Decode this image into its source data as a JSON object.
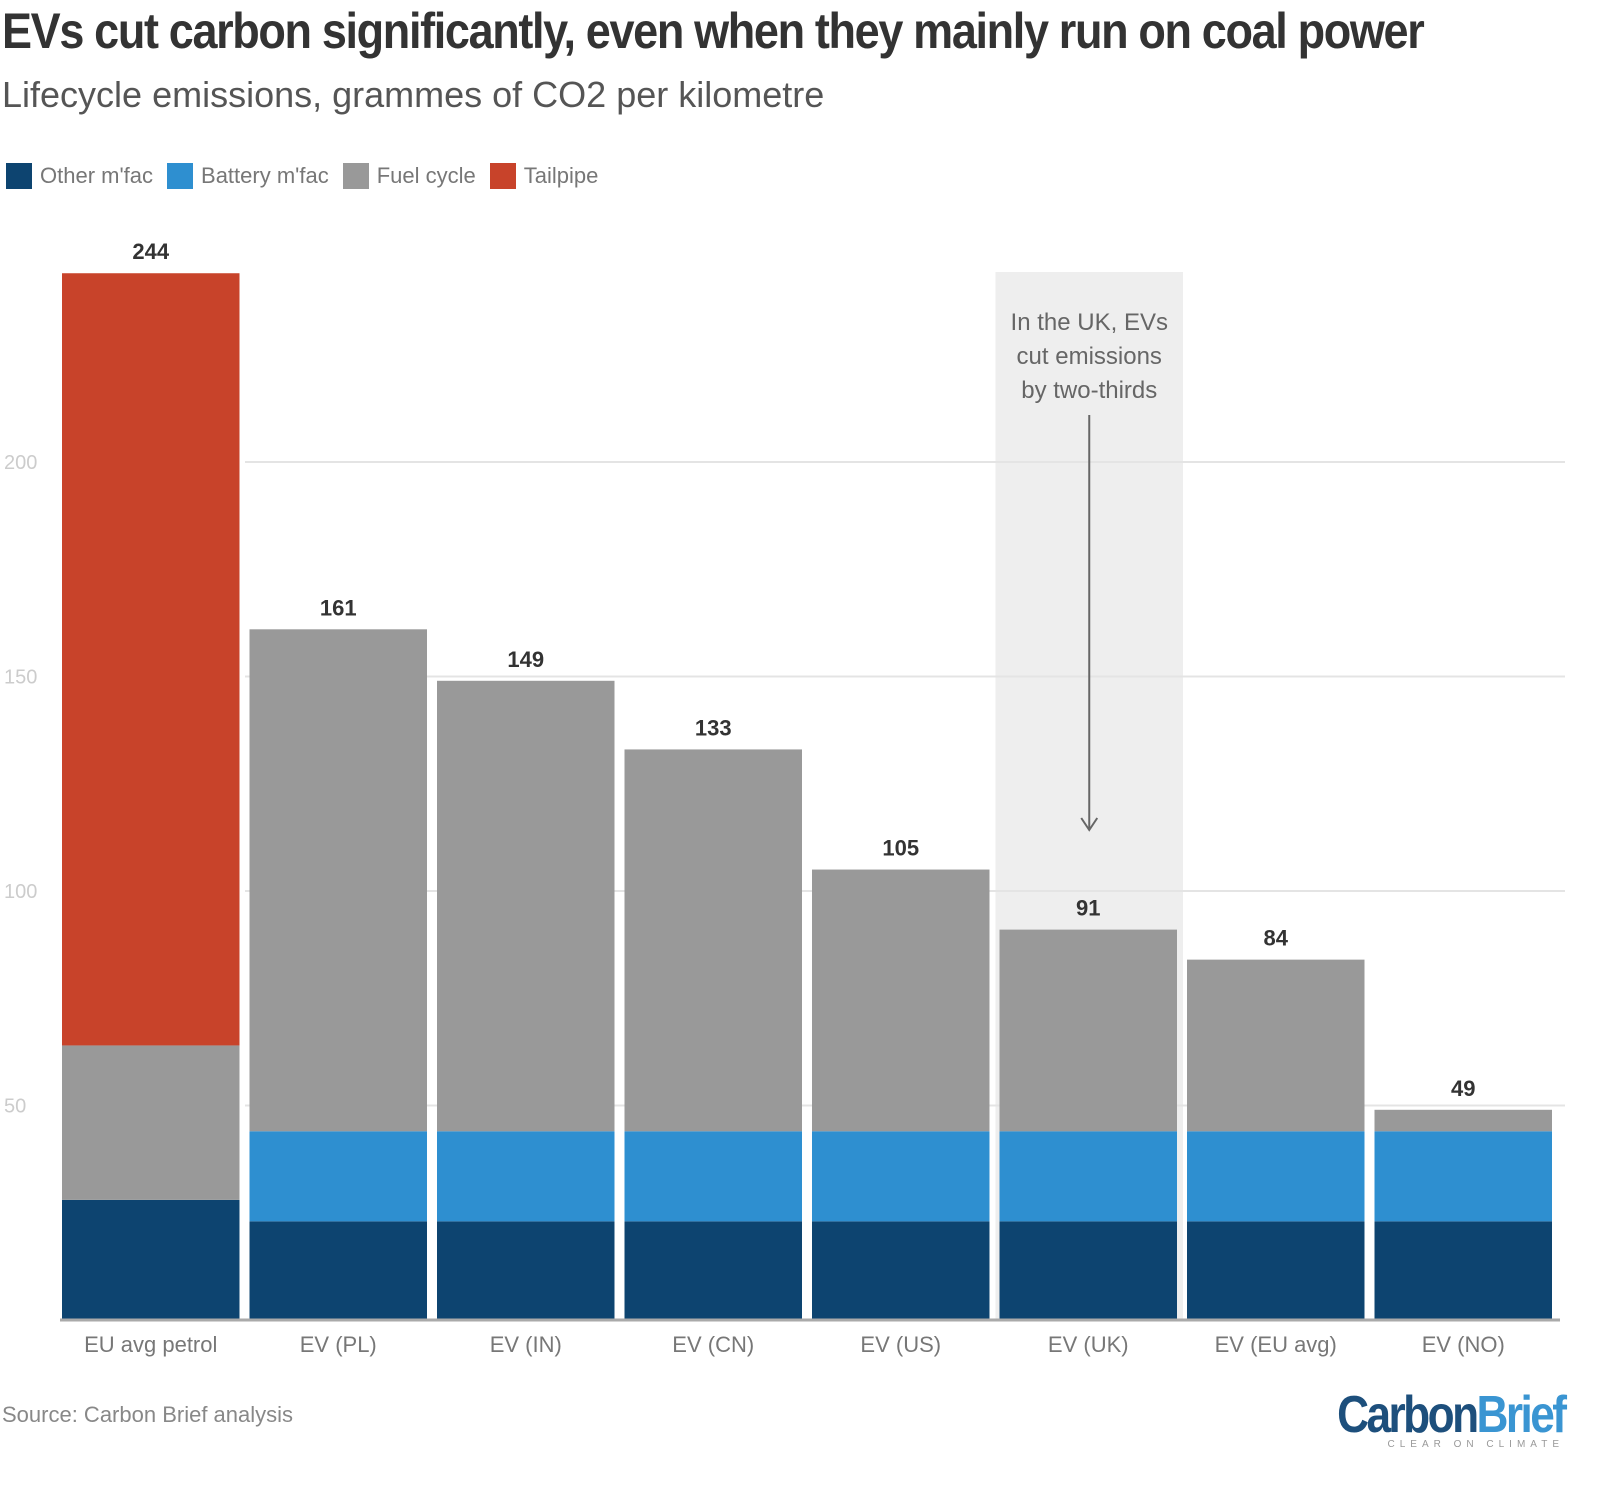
{
  "chart_data": {
    "type": "bar",
    "stacked": true,
    "title": "EVs cut carbon significantly, even when they mainly run on coal power",
    "subtitle": "Lifecycle emissions, grammes of CO2 per kilometre",
    "categories": [
      "EU avg petrol",
      "EV (PL)",
      "EV (IN)",
      "EV (CN)",
      "EV (US)",
      "EV (UK)",
      "EV (EU avg)",
      "EV (NO)"
    ],
    "series": [
      {
        "name": "Other m'fac",
        "color": "#0d4470",
        "values": [
          28,
          23,
          23,
          23,
          23,
          23,
          23,
          23
        ]
      },
      {
        "name": "Battery m'fac",
        "color": "#2e8fd0",
        "values": [
          0,
          21,
          21,
          21,
          21,
          21,
          21,
          21
        ]
      },
      {
        "name": "Fuel cycle",
        "color": "#999999",
        "values": [
          36,
          117,
          105,
          89,
          61,
          47,
          40,
          5
        ]
      },
      {
        "name": "Tailpipe",
        "color": "#c8432a",
        "values": [
          180,
          0,
          0,
          0,
          0,
          0,
          0,
          0
        ]
      }
    ],
    "totals": [
      244,
      161,
      149,
      133,
      105,
      91,
      84,
      49
    ],
    "ylim": [
      0,
      250
    ],
    "yticks": [
      50,
      100,
      150,
      200
    ],
    "grid": true,
    "legend_position": "top-left",
    "annotation": {
      "text_lines": [
        "In the UK, EVs",
        "cut emissions",
        "by two-thirds"
      ],
      "category": "EV (UK)"
    },
    "source": "Source: Carbon Brief analysis"
  },
  "logo": {
    "part1": "Carbon",
    "part2": "Brief",
    "tagline": "CLEAR ON CLIMATE"
  }
}
